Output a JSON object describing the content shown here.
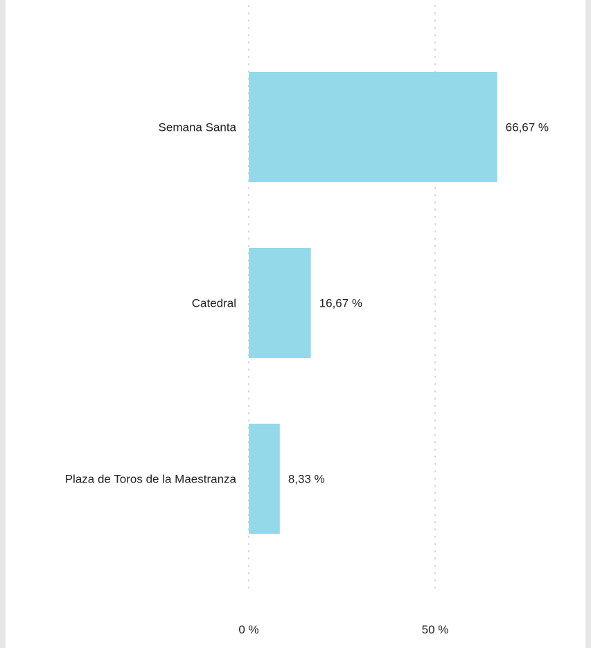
{
  "chart_data": {
    "type": "bar",
    "orientation": "horizontal",
    "categories": [
      "Semana Santa",
      "Catedral",
      "Plaza de Toros de la Maestranza"
    ],
    "values": [
      66.67,
      16.67,
      8.33
    ],
    "value_labels": [
      "66,67 %",
      "16,67 %",
      "8,33 %"
    ],
    "x_ticks": [
      0,
      50
    ],
    "x_tick_labels": [
      "0 %",
      "50 %"
    ],
    "xlim": [
      0,
      100
    ],
    "grid": "vertical-dotted",
    "title": "",
    "xlabel": "",
    "ylabel": ""
  },
  "colors": {
    "bar": "#94d9ea",
    "grid": "#c8c8c8",
    "text": "#222222",
    "background": "#e6e6e6",
    "panel": "#ffffff"
  }
}
